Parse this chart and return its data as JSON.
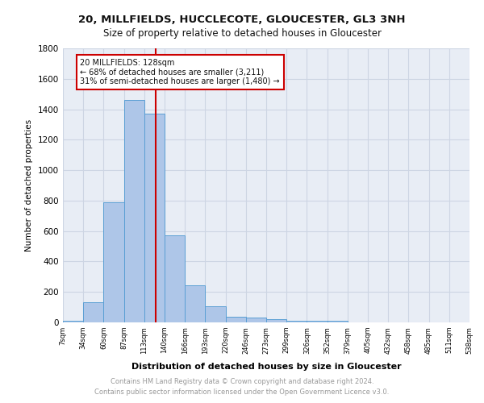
{
  "title1": "20, MILLFIELDS, HUCCLECOTE, GLOUCESTER, GL3 3NH",
  "title2": "Size of property relative to detached houses in Gloucester",
  "xlabel": "Distribution of detached houses by size in Gloucester",
  "ylabel": "Number of detached properties",
  "footer1": "Contains HM Land Registry data © Crown copyright and database right 2024.",
  "footer2": "Contains public sector information licensed under the Open Government Licence v3.0.",
  "bin_labels": [
    "7sqm",
    "34sqm",
    "60sqm",
    "87sqm",
    "113sqm",
    "140sqm",
    "166sqm",
    "193sqm",
    "220sqm",
    "246sqm",
    "273sqm",
    "299sqm",
    "326sqm",
    "352sqm",
    "379sqm",
    "405sqm",
    "432sqm",
    "458sqm",
    "485sqm",
    "511sqm",
    "538sqm"
  ],
  "bar_values": [
    10,
    135,
    790,
    1460,
    1370,
    570,
    245,
    105,
    38,
    30,
    20,
    12,
    10,
    10,
    0,
    0,
    0,
    0,
    0,
    0
  ],
  "bar_color": "#aec6e8",
  "bar_edge_color": "#5a9fd4",
  "property_line_color": "#cc0000",
  "annotation_line1": "20 MILLFIELDS: 128sqm",
  "annotation_line2": "← 68% of detached houses are smaller (3,211)",
  "annotation_line3": "31% of semi-detached houses are larger (1,480) →",
  "annotation_box_color": "#cc0000",
  "ylim": [
    0,
    1800
  ],
  "yticks": [
    0,
    200,
    400,
    600,
    800,
    1000,
    1200,
    1400,
    1600,
    1800
  ],
  "grid_color": "#cdd5e3",
  "plot_bg_color": "#e8edf5",
  "bin_edges": [
    7,
    34,
    60,
    87,
    113,
    140,
    166,
    193,
    220,
    246,
    273,
    299,
    326,
    352,
    379,
    405,
    432,
    458,
    485,
    511,
    538
  ],
  "property_sqm": 128
}
